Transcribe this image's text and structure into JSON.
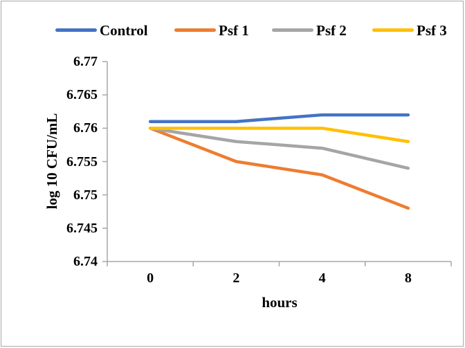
{
  "chart_data": {
    "type": "line",
    "categories": [
      "0",
      "2",
      "4",
      "8"
    ],
    "series": [
      {
        "name": "Control",
        "color": "#4472C4",
        "values": [
          6.761,
          6.761,
          6.762,
          6.762
        ]
      },
      {
        "name": "Psf 1",
        "color": "#ED7D31",
        "values": [
          6.76,
          6.755,
          6.753,
          6.748
        ]
      },
      {
        "name": "Psf 2",
        "color": "#A5A5A5",
        "values": [
          6.76,
          6.758,
          6.757,
          6.754
        ]
      },
      {
        "name": "Psf 3",
        "color": "#FFC000",
        "values": [
          6.76,
          6.76,
          6.76,
          6.758
        ]
      }
    ],
    "title": "",
    "xlabel": "hours",
    "ylabel": "log 10 CFU/mL",
    "ylim": [
      6.74,
      6.77
    ],
    "ytick_step": 0.005,
    "yticks": [
      "6.74",
      "6.745",
      "6.75",
      "6.755",
      "6.76",
      "6.765",
      "6.77"
    ],
    "legend_position": "top",
    "grid": false,
    "axis_color": "#a6a6a6",
    "text_color": "#000000",
    "frame_color": "#a8a8a8",
    "background_color": "#ffffff"
  }
}
